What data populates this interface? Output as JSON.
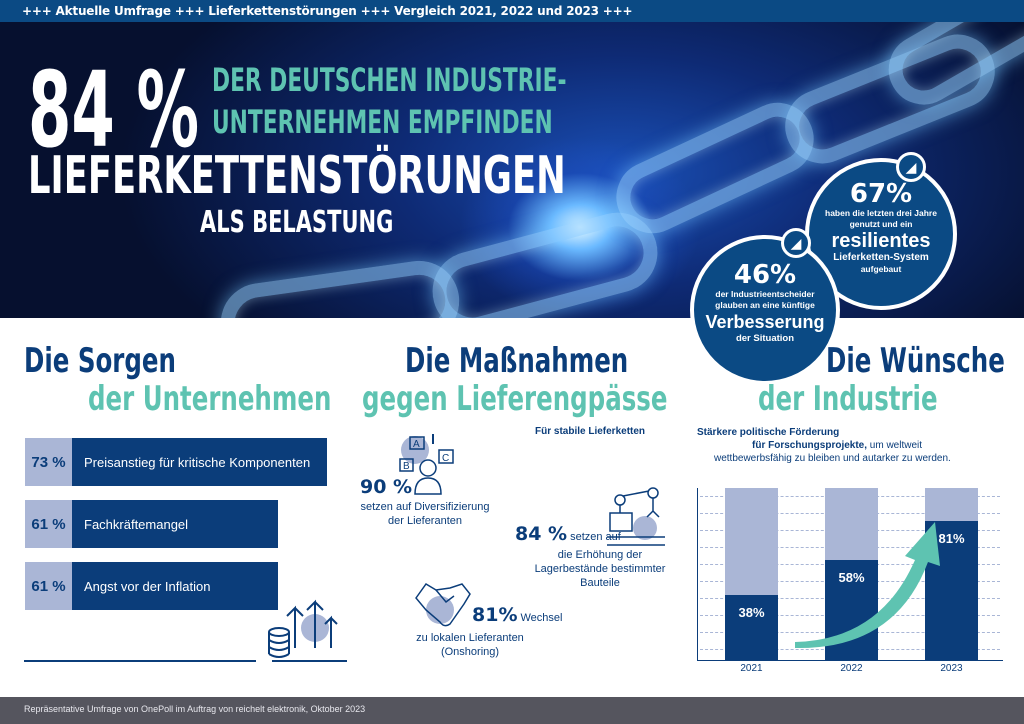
{
  "topbar": {
    "text": "+++ Aktuelle Umfrage +++ Lieferkettenstörungen +++ Vergleich 2021, 2022 und 2023 +++"
  },
  "hero": {
    "big_percent": "84 %",
    "teal_line1": "DER DEUTSCHEN INDUSTRIE-",
    "teal_line2": "UNTERNEHMEN EMPFINDEN",
    "headline": "LIEFERKETTENSTÖRUNGEN",
    "subline": "ALS BELASTUNG",
    "circle67": {
      "percent": "67%",
      "line1": "haben die letzten drei Jahre",
      "line2": "genutzt und ein",
      "highlight": "resilientes",
      "line3": "Lieferketten-System",
      "line4": "aufgebaut"
    },
    "circle46": {
      "percent": "46%",
      "line1": "der Industrieentscheider",
      "line2": "glauben an eine künftige",
      "highlight": "Verbesserung",
      "line3": "der Situation"
    }
  },
  "sorgen": {
    "title1": "Die Sorgen",
    "title2": "der Unternehmen",
    "items": [
      {
        "percent": "73 %",
        "label": "Preisanstieg für kritische Komponenten",
        "value": 73
      },
      {
        "percent": "61 %",
        "label": "Fachkräftemangel",
        "value": 61
      },
      {
        "percent": "61 %",
        "label": "Angst vor der Inflation",
        "value": 61
      }
    ]
  },
  "massnahmen": {
    "title1": "Die Maßnahmen",
    "title2": "gegen Lieferengpässe",
    "subtitle": "Für stabile Lieferketten",
    "items": [
      {
        "percent": "90 %",
        "text1": "setzen auf Diversifizierung",
        "text2": "der Lieferanten",
        "icon": "person-options-icon"
      },
      {
        "percent": "84 %",
        "text1": "setzen auf",
        "text2": "die Erhöhung der",
        "text3": "Lagerbestände bestimmter",
        "text4": "Bauteile",
        "icon": "robot-arm-icon"
      },
      {
        "percent": "81%",
        "text1": "Wechsel",
        "text2": "zu lokalen Lieferanten",
        "text3": "(Onshoring)",
        "icon": "handshake-icon"
      }
    ]
  },
  "wuensche": {
    "title1": "Die Wünsche",
    "title2": "der Industrie",
    "desc_bold1": "Stärkere politische Förderung",
    "desc_bold2": "für Forschungsprojekte,",
    "desc_rest1": " um weltweit",
    "desc_rest2": "wettbewerbsfähig zu bleiben und autarker zu werden."
  },
  "chart_data": {
    "type": "bar",
    "categories": [
      "2021",
      "2022",
      "2023"
    ],
    "values": [
      38,
      58,
      81
    ],
    "labels": [
      "38%",
      "58%",
      "81%"
    ],
    "ylim": [
      0,
      100
    ],
    "grid": true,
    "colors": {
      "fill": "#0b3d7a",
      "background": "#aab6d6",
      "arrow": "#5ec3b1"
    }
  },
  "footer": {
    "text": "Repräsentative Umfrage von OnePoll im Auftrag von reichelt elektronik, Oktober 2023"
  }
}
